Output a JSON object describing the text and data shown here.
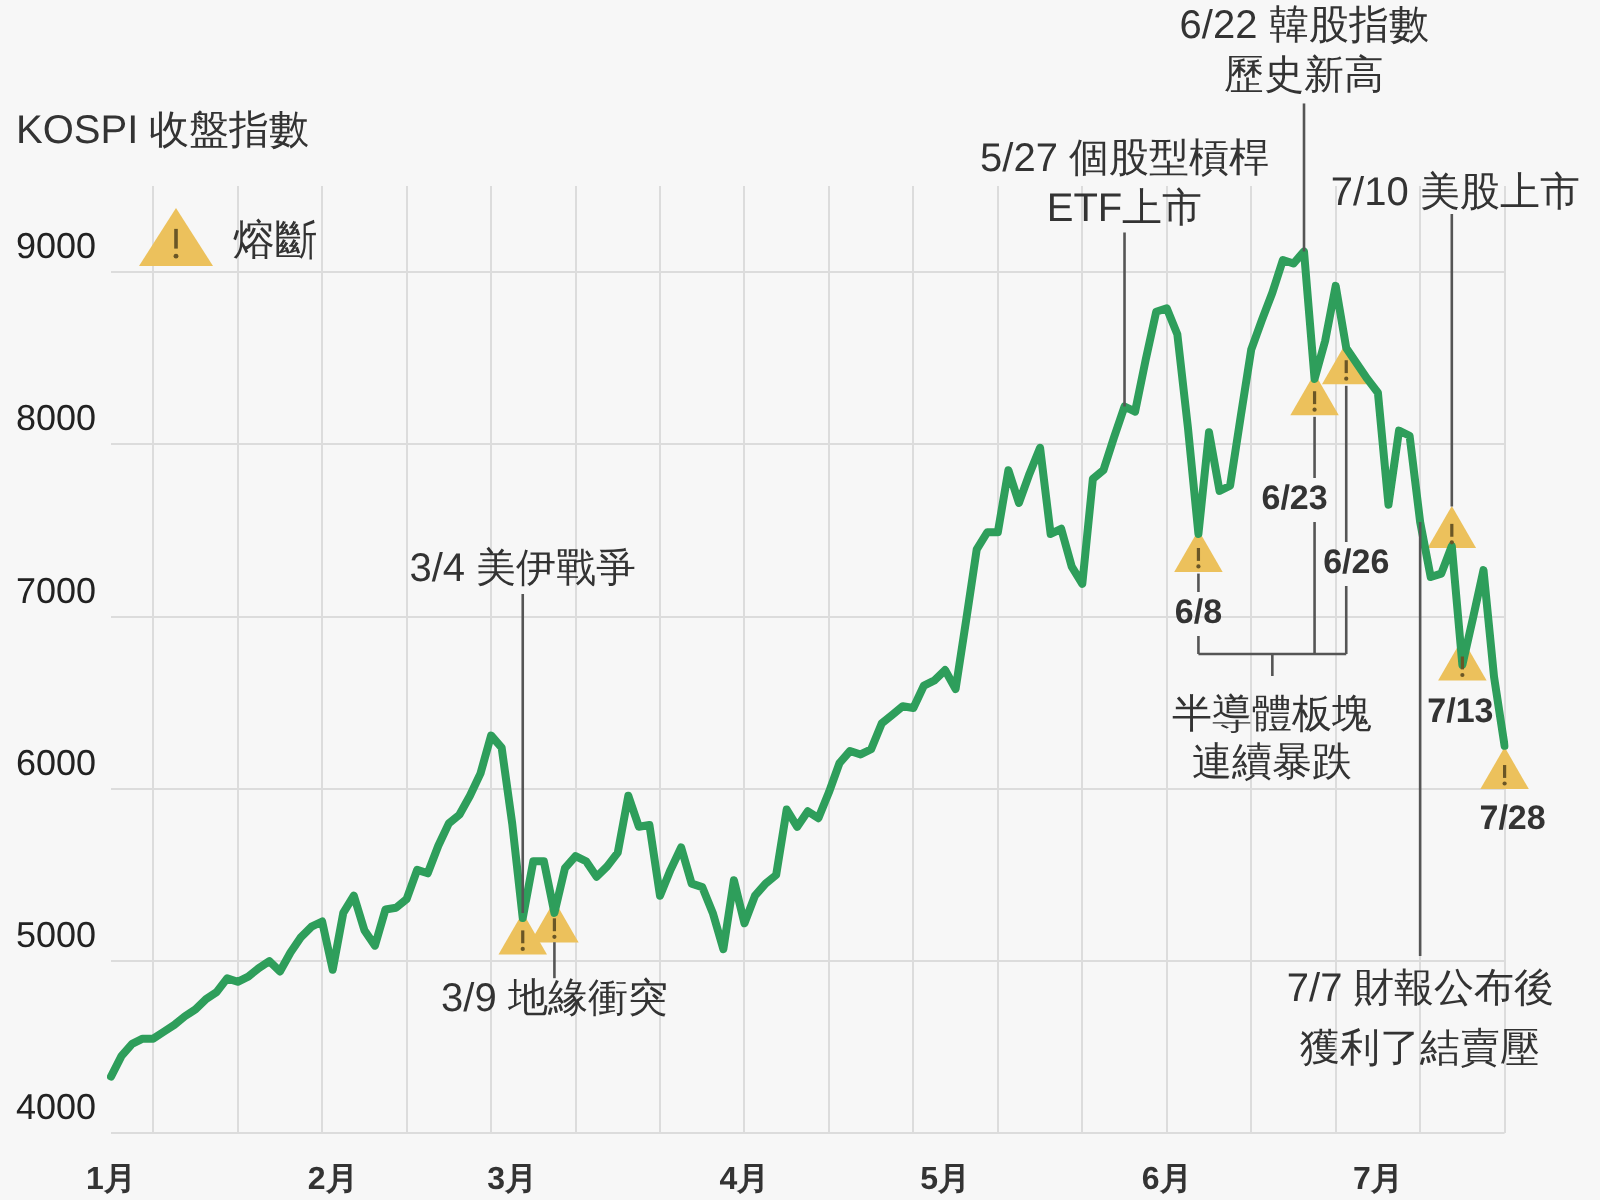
{
  "chart_data": {
    "type": "line",
    "title": "KOSPI 收盤指數",
    "categories": [
      "1月",
      null,
      null,
      null,
      null,
      null,
      null,
      null,
      null,
      null,
      null,
      null,
      null,
      null,
      null,
      null,
      null,
      null,
      null,
      null,
      null,
      "2月",
      null,
      null,
      null,
      null,
      null,
      null,
      null,
      null,
      null,
      null,
      null,
      null,
      null,
      null,
      null,
      null,
      "3月",
      null,
      null,
      null,
      null,
      null,
      null,
      null,
      null,
      null,
      null,
      null,
      null,
      null,
      null,
      null,
      null,
      null,
      null,
      null,
      null,
      null,
      "4月",
      null,
      null,
      null,
      null,
      null,
      null,
      null,
      null,
      null,
      null,
      null,
      null,
      null,
      null,
      null,
      null,
      null,
      null,
      "5月",
      null,
      null,
      null,
      null,
      null,
      null,
      null,
      null,
      null,
      null,
      null,
      null,
      null,
      null,
      null,
      null,
      null,
      null,
      null,
      null,
      "6月",
      null,
      null,
      null,
      null,
      null,
      null,
      null,
      null,
      null,
      null,
      null,
      null,
      null,
      null,
      null,
      null,
      null,
      null,
      null,
      "7月",
      null,
      null,
      null,
      null,
      null,
      null,
      null,
      null,
      null,
      null,
      null,
      null
    ],
    "ylim": [
      4000,
      9500
    ],
    "yticks": [
      4000,
      5000,
      6000,
      7000,
      8000,
      9000
    ],
    "grid": true,
    "legend": "top left",
    "annotations": [
      {
        "text": "3/4 美伊戰爭",
        "y": 5280
      },
      {
        "text": "3/9 地緣衝突",
        "y": 5110
      },
      {
        "text": "5/27 個股型槓桿ETF上市",
        "y": 8220
      },
      {
        "text": "6/22 韓股指數歷史新高",
        "y": 9120
      },
      {
        "text": "7/10 美股上市",
        "y": 7640
      },
      {
        "text": "7/7 財報公布後獲利了結賣壓",
        "y": 7550
      },
      "半導體板塊連續暴跌",
      {
        "text": "6/8",
        "y": 7250
      },
      {
        "text": "6/23",
        "y": 8160
      },
      {
        "text": "6/26",
        "y": 8340
      },
      "7/13",
      "7/28"
    ],
    "series": [
      {
        "color": "#2e9e5b",
        "values": [
          4330,
          4450,
          4520,
          4550,
          4550,
          4590,
          4630,
          4680,
          4720,
          4780,
          4820,
          4900,
          4880,
          4910,
          4960,
          5000,
          4940,
          5050,
          5140,
          5200,
          5230,
          4950,
          5280,
          5380,
          5180,
          5090,
          5300,
          5310,
          5360,
          5530,
          5510,
          5670,
          5800,
          5850,
          5960,
          6090,
          6310,
          6240,
          5800,
          5250,
          5580,
          5580,
          5280,
          5540,
          5610,
          5580,
          5490,
          5550,
          5630,
          5960,
          5780,
          5790,
          5380,
          5530,
          5660,
          5450,
          5430,
          5280,
          5070,
          5470,
          5220,
          5380,
          5450,
          5500,
          5880,
          5780,
          5870,
          5830,
          5980,
          6150,
          6220,
          6200,
          6230,
          6380,
          6430,
          6480,
          6470,
          6600,
          6630,
          6690,
          6580,
          6980,
          7390,
          7490,
          7490,
          7850,
          7660,
          7830,
          7980,
          7480,
          7510,
          7290,
          7190,
          7800,
          7850,
          8040,
          8220,
          8190,
          8490,
          8770,
          8790,
          8640,
          8100,
          7480,
          8070,
          7730,
          7760,
          8160,
          8550,
          8720,
          8880,
          9070,
          9050,
          9120,
          8380,
          8600,
          8920,
          8560,
          8470,
          8380,
          8300,
          7650,
          8080,
          8050,
          7550,
          7230,
          7250,
          7410,
          6720,
          6990,
          7270,
          6650,
          6250
        ]
      },
      {
        "type": "scatter",
        "name": "熔斷",
        "color": "#ecc15c",
        "marker": "triangle",
        "values": [
          null,
          null,
          null,
          null,
          null,
          null,
          null,
          null,
          null,
          null,
          null,
          null,
          null,
          null,
          null,
          null,
          null,
          null,
          null,
          null,
          null,
          null,
          null,
          null,
          null,
          null,
          null,
          null,
          null,
          null,
          null,
          null,
          null,
          null,
          null,
          null,
          null,
          null,
          null,
          5120,
          null,
          null,
          5190,
          null,
          null,
          null,
          null,
          null,
          null,
          null,
          null,
          null,
          null,
          null,
          null,
          null,
          null,
          null,
          null,
          null,
          null,
          null,
          null,
          null,
          null,
          null,
          null,
          null,
          null,
          null,
          null,
          null,
          null,
          null,
          null,
          null,
          null,
          null,
          null,
          null,
          null,
          null,
          null,
          null,
          null,
          null,
          null,
          null,
          null,
          null,
          null,
          null,
          null,
          null,
          null,
          null,
          null,
          null,
          null,
          null,
          null,
          null,
          null,
          7340,
          null,
          null,
          null,
          null,
          null,
          null,
          null,
          null,
          null,
          null,
          8250,
          null,
          null,
          8430,
          null,
          null,
          null,
          null,
          null,
          null,
          null,
          null,
          null,
          7480,
          6710,
          null,
          null,
          null,
          6080
        ]
      }
    ]
  }
}
